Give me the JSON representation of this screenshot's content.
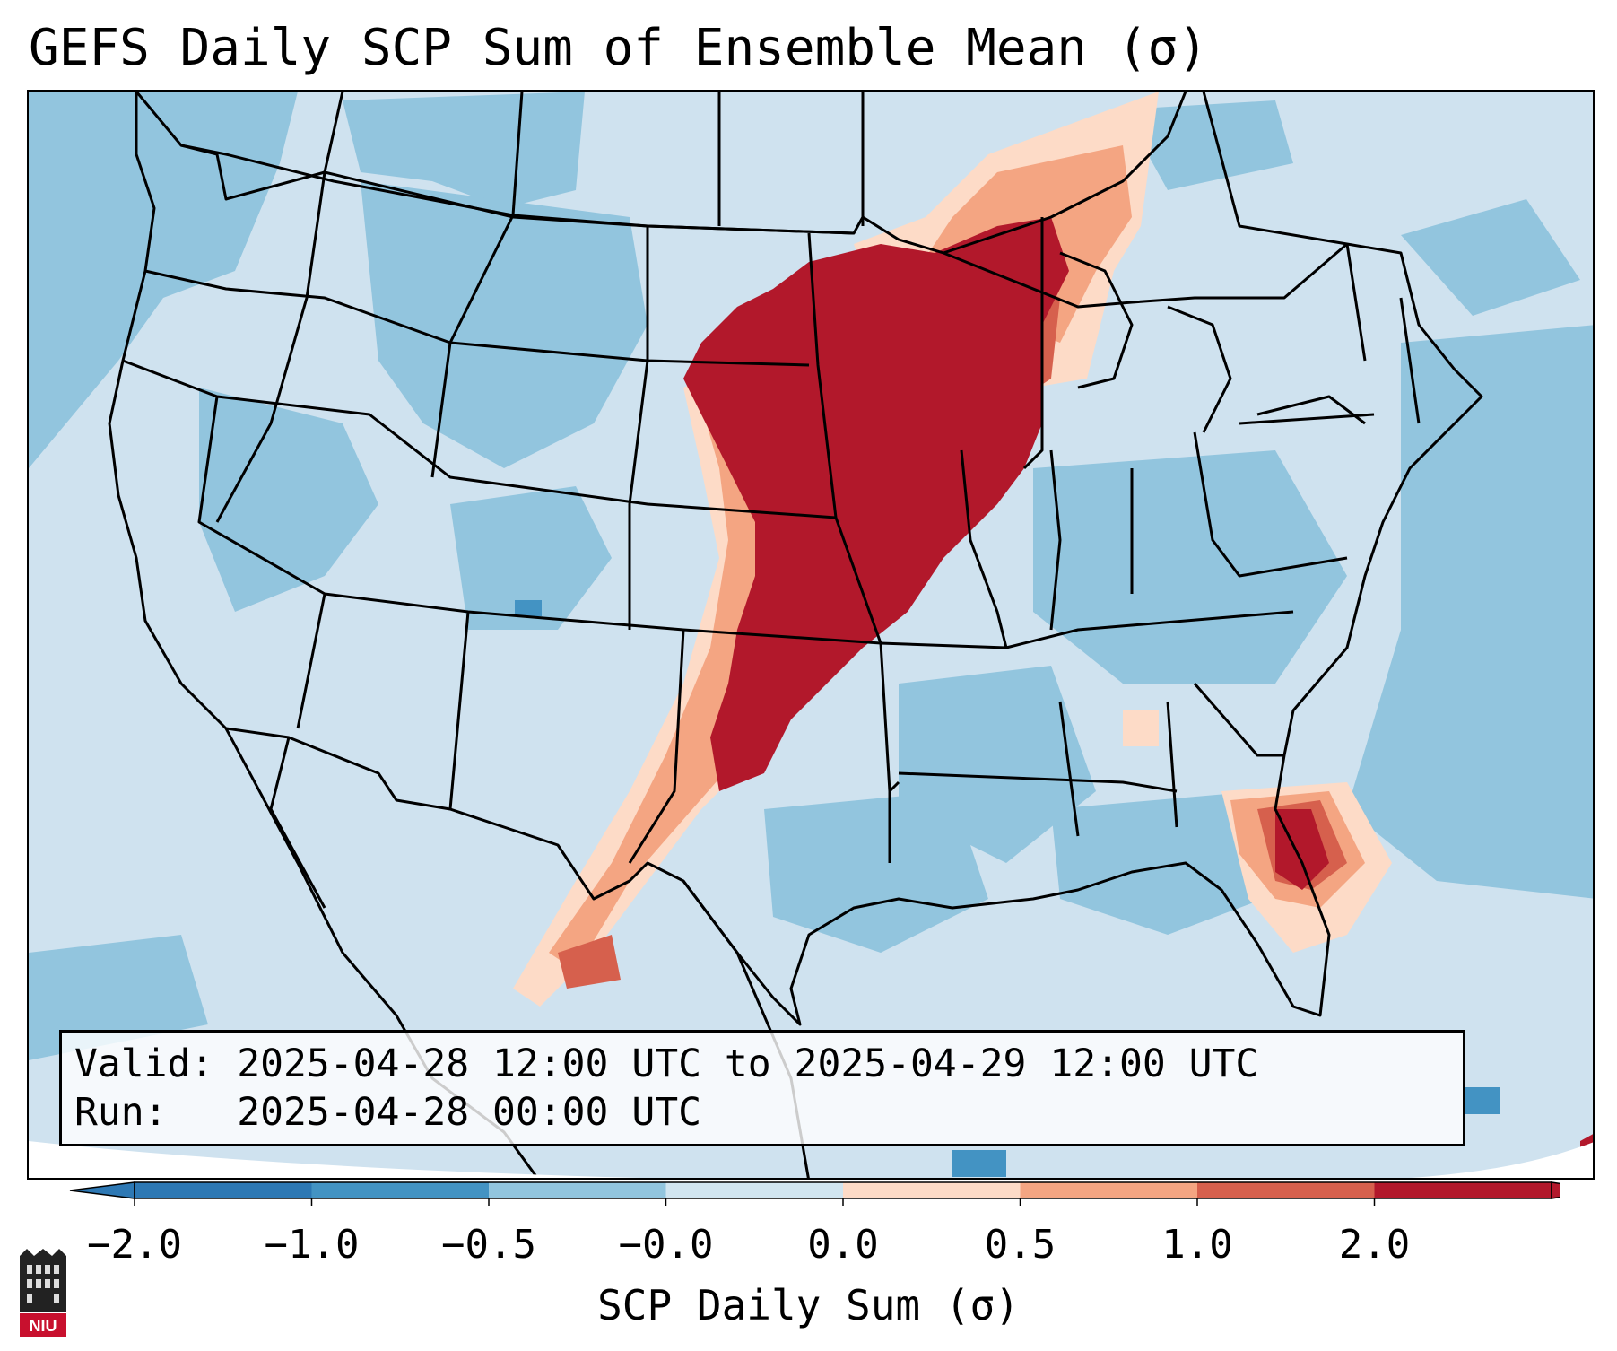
{
  "title": "GEFS Daily SCP Sum of Ensemble Mean (σ)",
  "info": {
    "valid_label": "Valid:",
    "valid_value": "2025-04-28 12:00 UTC to 2025-04-29 12:00 UTC",
    "run_label": "Run:",
    "run_value": "2025-04-28 00:00 UTC"
  },
  "colorbar": {
    "label": "SCP Daily Sum (σ)",
    "tick_labels": [
      "−2.0",
      "−1.0",
      "−0.5",
      "−0.0",
      "0.0",
      "0.5",
      "1.0",
      "2.0"
    ],
    "colors": [
      "#2d78b4",
      "#4393c3",
      "#92c5de",
      "#d1e5f0",
      "#fddbc7",
      "#f4a582",
      "#d6604d",
      "#b2182b"
    ]
  },
  "map": {
    "projection": "Lambert conformal, contiguous United States",
    "background_color": "#cfe2ef",
    "boundary_color": "#000000",
    "high_anomaly_region": "Upper Midwest, central Plains, Oklahoma, Texas, Florida"
  },
  "logo": {
    "text": "NIU",
    "icon": "university-building-icon"
  }
}
